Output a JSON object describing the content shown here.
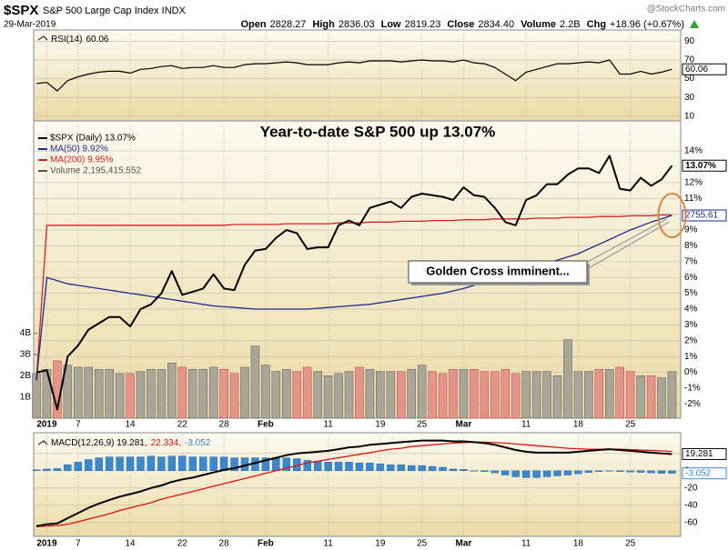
{
  "header": {
    "symbol": "$SPX",
    "name": "S&P 500 Large Cap Index INDX",
    "date": "29-Mar-2019",
    "quote": [
      {
        "label": "Open",
        "value": "2828.27"
      },
      {
        "label": "High",
        "value": "2836.03"
      },
      {
        "label": "Low",
        "value": "2819.23"
      },
      {
        "label": "Close",
        "value": "2834.40"
      },
      {
        "label": "Volume",
        "value": "2.2B"
      },
      {
        "label": "Chg",
        "value": "+18.96 (+0.67%)"
      }
    ],
    "source": "@StockCharts.com"
  },
  "chart_data": [
    {
      "type": "line",
      "label": "RSI(14)",
      "color": "#000000",
      "values": [
        45,
        46,
        37,
        48,
        52,
        55,
        57,
        58,
        58,
        56,
        60,
        61,
        63,
        64,
        61,
        62,
        62,
        64,
        62,
        62,
        65,
        66,
        66,
        67,
        68,
        67,
        65,
        65,
        65,
        67,
        68,
        67,
        69,
        69,
        69,
        68,
        69,
        70,
        69,
        69,
        68,
        70,
        67,
        66,
        62,
        55,
        48,
        57,
        60,
        63,
        66,
        66,
        67,
        68,
        67,
        70,
        55,
        55,
        58,
        55,
        57,
        60.06
      ],
      "ylim": [
        5,
        102
      ],
      "yticks": [
        10,
        30,
        50,
        70,
        90
      ],
      "grid": true
    },
    {
      "type": "line",
      "title": "Year-to-date S&P 500 up 13.07%",
      "categories": [
        null,
        "2019",
        null,
        null,
        "7",
        null,
        null,
        null,
        null,
        "14",
        null,
        null,
        null,
        null,
        "22",
        null,
        null,
        null,
        "28",
        null,
        null,
        null,
        "Feb",
        null,
        null,
        null,
        null,
        null,
        "11",
        null,
        null,
        null,
        null,
        "19",
        null,
        null,
        null,
        "25",
        null,
        null,
        null,
        "Mar",
        null,
        null,
        null,
        null,
        null,
        "11",
        null,
        null,
        null,
        null,
        "18",
        null,
        null,
        null,
        null,
        "25",
        null,
        null,
        null,
        null
      ],
      "series": [
        {
          "name": "$SPX (Daily) 13.07%",
          "color": "#000000",
          "values": [
            0,
            0.13,
            -2.35,
            1.0,
            1.7,
            2.7,
            3.1,
            3.5,
            3.5,
            2.9,
            4.0,
            4.3,
            5.0,
            6.4,
            4.9,
            5.1,
            5.3,
            6.2,
            5.3,
            5.2,
            6.8,
            7.7,
            7.8,
            8.5,
            9.0,
            8.8,
            7.8,
            7.9,
            7.9,
            9.3,
            9.6,
            9.3,
            10.4,
            10.6,
            10.8,
            10.4,
            11.1,
            11.3,
            11.2,
            11.1,
            10.9,
            11.7,
            11.2,
            11.1,
            10.4,
            9.5,
            9.3,
            10.9,
            11.2,
            11.9,
            11.9,
            12.5,
            12.9,
            12.9,
            12.6,
            13.7,
            11.6,
            11.5,
            12.3,
            11.8,
            12.2,
            13.07
          ]
        },
        {
          "name": "MA(50) 9.92%",
          "color": "#1f2a8a",
          "values": [
            -0.5,
            6.0,
            5.8,
            5.6,
            5.5,
            5.4,
            5.3,
            5.2,
            5.1,
            5.0,
            4.9,
            4.8,
            4.7,
            4.6,
            4.5,
            4.4,
            4.3,
            4.2,
            4.15,
            4.1,
            4.05,
            4.0,
            4.0,
            4.0,
            4.0,
            4.0,
            4.0,
            4.05,
            4.1,
            4.15,
            4.2,
            4.25,
            4.3,
            4.4,
            4.5,
            4.6,
            4.7,
            4.8,
            4.9,
            5.0,
            5.15,
            5.3,
            5.5,
            5.7,
            5.9,
            6.1,
            6.3,
            6.5,
            6.7,
            6.9,
            7.1,
            7.3,
            7.5,
            7.8,
            8.1,
            8.4,
            8.7,
            9.0,
            9.25,
            9.5,
            9.7,
            9.92
          ]
        },
        {
          "name": "MA(200) 9.95%",
          "color": "#d42020",
          "values": [
            -0.5,
            9.3,
            9.3,
            9.3,
            9.3,
            9.3,
            9.3,
            9.3,
            9.3,
            9.3,
            9.3,
            9.3,
            9.3,
            9.3,
            9.3,
            9.3,
            9.3,
            9.3,
            9.3,
            9.35,
            9.35,
            9.35,
            9.35,
            9.35,
            9.4,
            9.4,
            9.4,
            9.4,
            9.4,
            9.45,
            9.45,
            9.45,
            9.5,
            9.5,
            9.5,
            9.55,
            9.55,
            9.55,
            9.6,
            9.6,
            9.6,
            9.65,
            9.65,
            9.65,
            9.7,
            9.7,
            9.7,
            9.7,
            9.75,
            9.75,
            9.75,
            9.8,
            9.8,
            9.8,
            9.85,
            9.85,
            9.85,
            9.9,
            9.9,
            9.9,
            9.95,
            9.95
          ]
        }
      ],
      "ylim": [
        -2.9,
        15.9
      ],
      "yticks": [
        {
          "value": -2,
          "label": "-2%"
        },
        {
          "value": -1,
          "label": "-1%"
        },
        {
          "value": 0,
          "label": "0%"
        },
        {
          "value": 1,
          "label": "1%"
        },
        {
          "value": 2,
          "label": "2%"
        },
        {
          "value": 3,
          "label": "3%"
        },
        {
          "value": 4,
          "label": "4%"
        },
        {
          "value": 5,
          "label": "5%"
        },
        {
          "value": 6,
          "label": "6%"
        },
        {
          "value": 7,
          "label": "7%"
        },
        {
          "value": 8,
          "label": "8%"
        },
        {
          "value": 9,
          "label": "9%"
        },
        {
          "value": 10,
          "label": "10%"
        },
        {
          "value": 11,
          "label": "11%"
        },
        {
          "value": 12,
          "label": "12%"
        },
        {
          "value": 14,
          "label": "14%"
        }
      ],
      "tags": [
        {
          "value": 13.07,
          "label": "13.07%"
        },
        {
          "value": 9.92,
          "label": "2755.61"
        }
      ],
      "annotation": "Golden Cross imminent...",
      "grid": true
    },
    {
      "type": "bar",
      "series": [
        {
          "name": "Volume 2,195,415,552",
          "color": "#a9a598",
          "values": [
            2.1,
            2.3,
            2.7,
            2.5,
            2.4,
            2.4,
            2.3,
            2.3,
            2.1,
            2.1,
            2.2,
            2.3,
            2.3,
            2.6,
            2.4,
            2.3,
            2.3,
            2.4,
            2.3,
            2.1,
            2.4,
            3.4,
            2.5,
            2.2,
            2.3,
            2.2,
            2.4,
            2.2,
            2.0,
            2.1,
            2.2,
            2.4,
            2.3,
            2.2,
            2.2,
            2.2,
            2.3,
            2.5,
            2.2,
            2.1,
            2.3,
            2.3,
            2.3,
            2.2,
            2.2,
            2.3,
            2.1,
            2.2,
            2.2,
            2.2,
            2.0,
            3.7,
            2.2,
            2.2,
            2.3,
            2.3,
            2.4,
            2.2,
            2.0,
            2.0,
            1.9,
            2.195415552
          ]
        }
      ],
      "down_color": "#e4948a",
      "ylim": [
        0,
        14
      ],
      "yticks": [
        {
          "value": 1,
          "label": "1B"
        },
        {
          "value": 2,
          "label": "2B"
        },
        {
          "value": 3,
          "label": "3B"
        },
        {
          "value": 4,
          "label": "4B"
        }
      ]
    },
    {
      "type": "line",
      "categories": [
        null,
        "2019",
        null,
        null,
        "7",
        null,
        null,
        null,
        null,
        "14",
        null,
        null,
        null,
        null,
        "22",
        null,
        null,
        null,
        "28",
        null,
        null,
        null,
        "Feb",
        null,
        null,
        null,
        null,
        null,
        "11",
        null,
        null,
        null,
        null,
        "19",
        null,
        null,
        null,
        "25",
        null,
        null,
        null,
        "Mar",
        null,
        null,
        null,
        null,
        null,
        "11",
        null,
        null,
        null,
        null,
        "18",
        null,
        null,
        null,
        null,
        "25",
        null,
        null,
        null,
        null
      ],
      "series": [
        {
          "name": "MACD(12,26,9) 19.281,",
          "color": "#000000",
          "values": [
            -64,
            -62,
            -61,
            -55,
            -49,
            -43,
            -38,
            -34,
            -30,
            -27,
            -24,
            -20,
            -17,
            -13,
            -10,
            -8,
            -5,
            -2,
            1,
            3,
            6,
            9,
            12,
            15,
            18,
            20,
            21,
            22,
            23,
            25,
            27,
            28,
            30,
            31,
            32,
            33,
            34,
            35,
            35,
            35,
            34,
            34,
            33,
            32,
            30,
            27,
            24,
            22,
            21,
            21,
            21,
            21,
            22,
            23,
            24,
            25,
            24,
            23,
            22,
            21,
            20,
            19.281
          ]
        },
        {
          "name": "22.334,",
          "color": "#e01010",
          "values": [
            -65,
            -64,
            -63.5,
            -62,
            -59,
            -56,
            -53,
            -50,
            -46,
            -43,
            -40,
            -37,
            -33,
            -30,
            -27,
            -24,
            -21,
            -18,
            -15,
            -12,
            -9,
            -6,
            -3,
            0,
            3,
            6,
            9,
            11,
            13,
            15,
            17,
            19,
            21,
            23,
            25,
            26,
            28,
            29,
            30,
            31,
            32,
            32.5,
            33,
            33,
            32.5,
            32,
            31,
            30,
            29,
            28,
            27,
            26,
            25.5,
            25,
            25,
            25,
            25,
            24.5,
            24,
            23.5,
            23,
            22.334
          ]
        }
      ],
      "histogram": {
        "name": "-3.052",
        "color": "#3a88d2",
        "values": [
          1,
          2,
          2.5,
          7,
          10,
          13,
          15,
          16,
          16,
          16,
          16,
          17,
          16,
          17,
          17,
          16,
          16,
          16,
          16,
          15,
          15,
          15,
          15,
          15,
          15,
          14,
          12,
          11,
          10,
          10,
          10,
          9,
          9,
          8,
          7,
          7,
          6,
          6,
          5,
          4,
          2,
          1.5,
          0,
          -1,
          -2.5,
          -5,
          -7,
          -8,
          -8,
          -7,
          -6,
          -5,
          -3.5,
          -2,
          -1,
          0,
          -1,
          -1.5,
          -2,
          -2.5,
          -3,
          -3.052
        ]
      },
      "ylim": [
        -76,
        44
      ],
      "yticks": [
        -60,
        -40,
        -20,
        0,
        20
      ],
      "grid": true
    }
  ]
}
